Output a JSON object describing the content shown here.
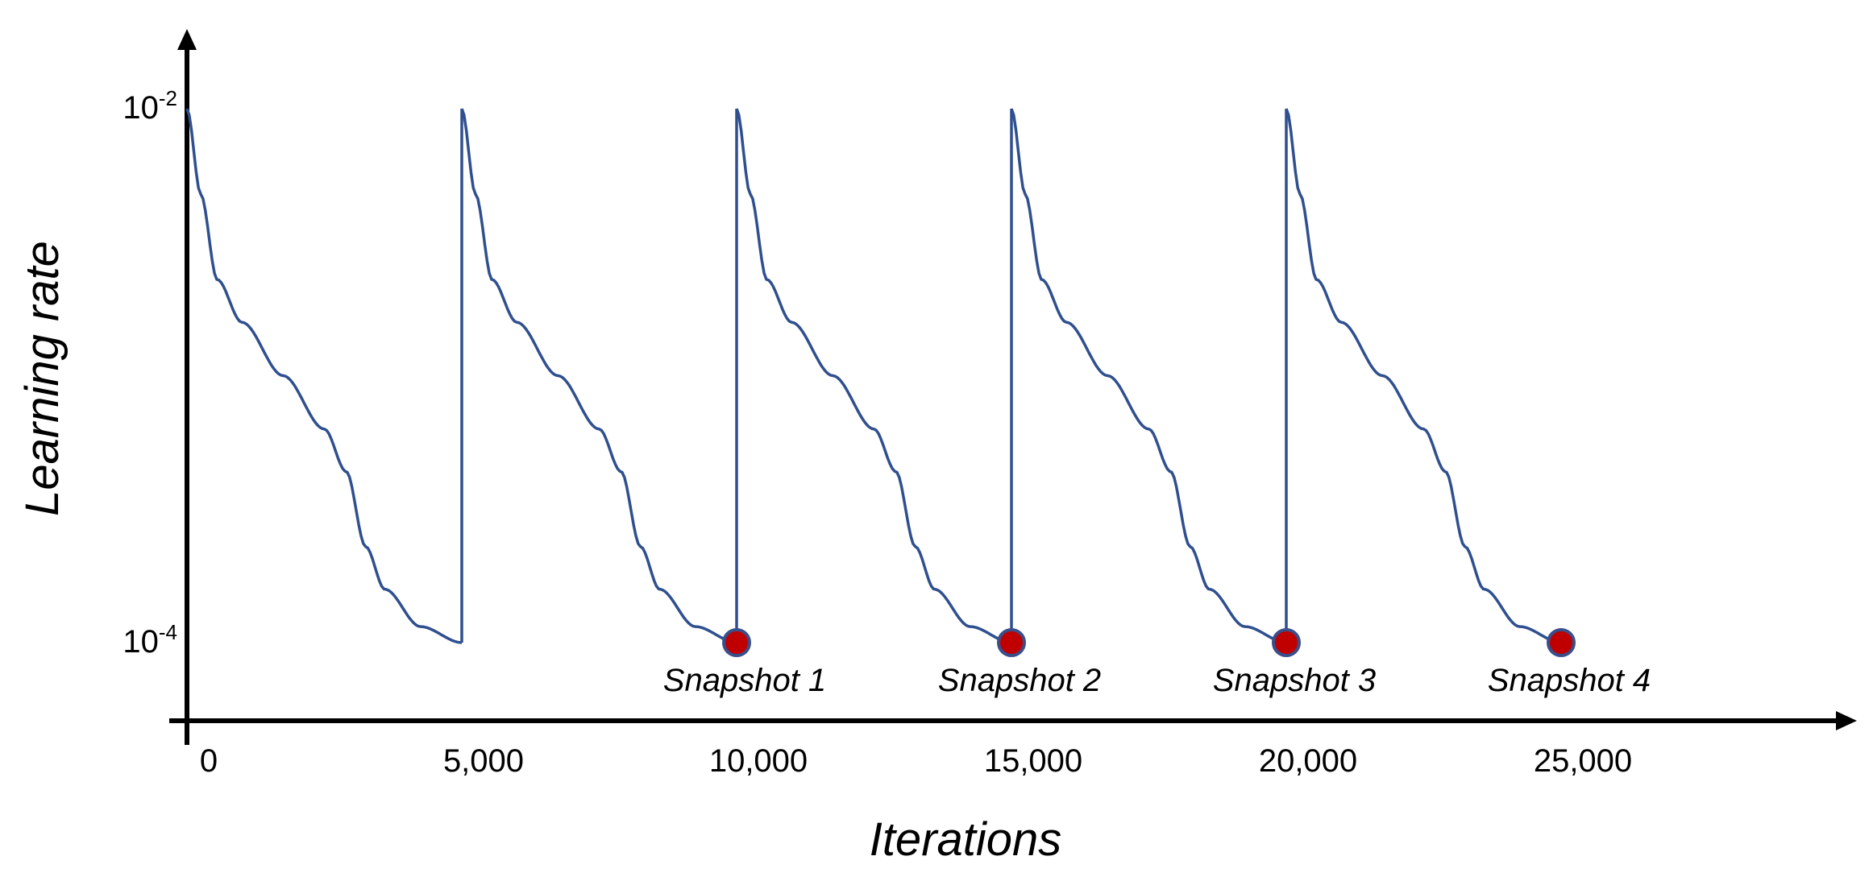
{
  "chart_data": {
    "type": "line",
    "xlabel": "Iterations",
    "ylabel": "Learning rate",
    "x_ticks": [
      {
        "value": 0,
        "label": "0"
      },
      {
        "value": 5000,
        "label": "5,000"
      },
      {
        "value": 10000,
        "label": "10,000"
      },
      {
        "value": 15000,
        "label": "15,000"
      },
      {
        "value": 20000,
        "label": "20,000"
      },
      {
        "value": 25000,
        "label": "25,000"
      }
    ],
    "y_ticks": [
      {
        "value": 0.01,
        "base": "10",
        "exp": "-2"
      },
      {
        "value": 0.0001,
        "base": "10",
        "exp": "-4"
      }
    ],
    "y_scale": "log",
    "xlim": [
      -200,
      30000
    ],
    "ylim": [
      5e-05,
      0.02
    ],
    "lr_max": 0.01,
    "lr_min": 0.0001,
    "cycles": [
      {
        "start": 0,
        "end": 5000
      },
      {
        "start": 5000,
        "end": 10000
      },
      {
        "start": 10000,
        "end": 15000
      },
      {
        "start": 15000,
        "end": 20000
      },
      {
        "start": 20000,
        "end": 25000
      }
    ],
    "series": [
      {
        "color": "#2f4f8f"
      }
    ],
    "snapshots": [
      {
        "x": 10000,
        "y": 0.0001,
        "label": "Snapshot 1"
      },
      {
        "x": 15000,
        "y": 0.0001,
        "label": "Snapshot 2"
      },
      {
        "x": 20000,
        "y": 0.0001,
        "label": "Snapshot 3"
      },
      {
        "x": 25000,
        "y": 0.0001,
        "label": "Snapshot 4"
      }
    ],
    "snapshot_color": "#c00000",
    "snapshot_edge": "#3a4f8a",
    "grid": false,
    "legend": "none"
  }
}
